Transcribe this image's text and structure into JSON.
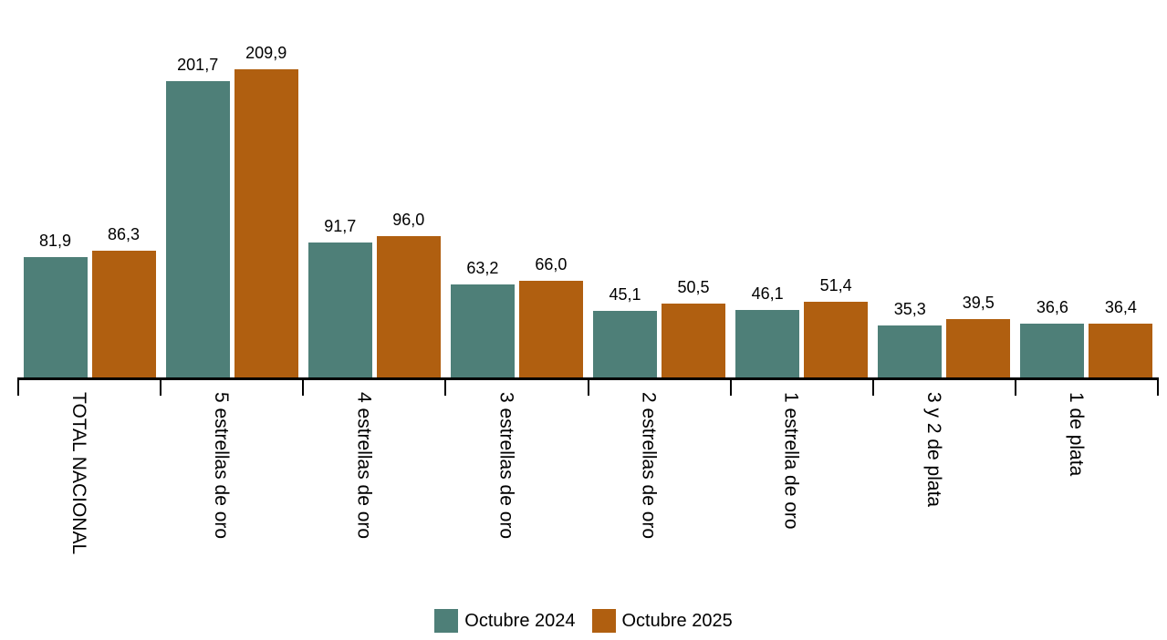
{
  "chart_data": {
    "type": "bar",
    "categories": [
      "TOTAL NACIONAL",
      "5 estrellas de oro",
      "4 estrellas de oro",
      "3 estrellas de oro",
      "2 estrellas de oro",
      "1 estrella de oro",
      "3 y 2 de plata",
      "1 de plata"
    ],
    "series": [
      {
        "name": "Octubre 2024",
        "color": "#4E7F78",
        "values": [
          81.9,
          201.7,
          91.7,
          63.2,
          45.1,
          46.1,
          35.3,
          36.6
        ],
        "labels": [
          "81,9",
          "201,7",
          "91,7",
          "63,2",
          "45,1",
          "46,1",
          "35,3",
          "36,6"
        ]
      },
      {
        "name": "Octubre 2025",
        "color": "#B05F10",
        "values": [
          86.3,
          209.9,
          96.0,
          66.0,
          50.5,
          51.4,
          39.5,
          36.4
        ],
        "labels": [
          "86,3",
          "209,9",
          "96,0",
          "66,0",
          "50,5",
          "51,4",
          "39,5",
          "36,4"
        ]
      }
    ],
    "title": "",
    "xlabel": "",
    "ylabel": "",
    "ylim": [
      0,
      257
    ],
    "grid": false,
    "legend_position": "bottom",
    "value_labels": true,
    "decimal_separator": ",",
    "axis_color": "#000000",
    "background_color": "#FFFFFF",
    "x_tick_label_rotation": "vertical-top-to-bottom"
  },
  "legend": {
    "items": [
      {
        "label": "Octubre 2024",
        "color": "#4E7F78"
      },
      {
        "label": "Octubre 2025",
        "color": "#B05F10"
      }
    ]
  }
}
